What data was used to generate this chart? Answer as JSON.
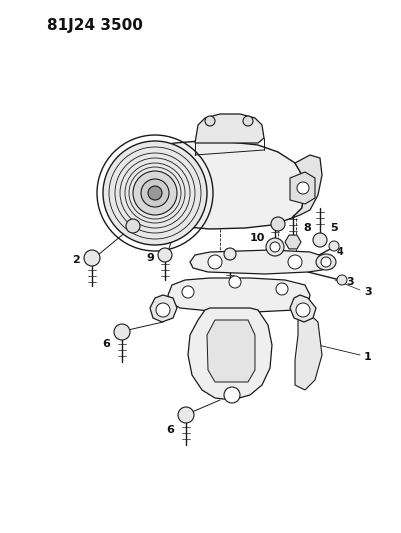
{
  "part_number": "81J24 3500",
  "bg": "#ffffff",
  "lc": "#1a1a1a",
  "tc": "#111111",
  "fig_width": 4.02,
  "fig_height": 5.33,
  "dpi": 100
}
